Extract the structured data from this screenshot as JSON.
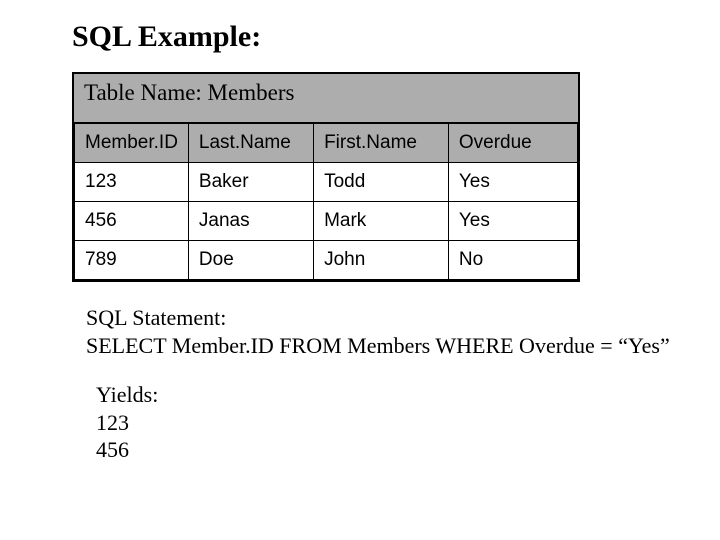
{
  "heading": "SQL Example:",
  "table": {
    "title": "Table Name:  Members",
    "title_bg": "#adadad",
    "header_bg": "#adadad",
    "border_color": "#000000",
    "columns": [
      "Member.ID",
      "Last.Name",
      "First.Name",
      "Overdue"
    ],
    "col_widths": [
      "22%",
      "25%",
      "27%",
      "26%"
    ],
    "rows": [
      [
        "123",
        "Baker",
        "Todd",
        "Yes"
      ],
      [
        "456",
        "Janas",
        "Mark",
        "Yes"
      ],
      [
        "789",
        "Doe",
        "John",
        "No"
      ]
    ],
    "header_font": "Arial",
    "header_fontsize": 19,
    "cell_font": "Arial",
    "cell_fontsize": 19
  },
  "sql": {
    "label": "SQL Statement:",
    "statement": "SELECT Member.ID FROM Members WHERE Overdue = “Yes”"
  },
  "yields": {
    "label": "Yields:",
    "values": [
      "123",
      "456"
    ]
  },
  "colors": {
    "background": "#ffffff",
    "text": "#000000"
  },
  "fonts": {
    "serif": "Times New Roman",
    "heading_size": 30,
    "body_size": 22
  }
}
